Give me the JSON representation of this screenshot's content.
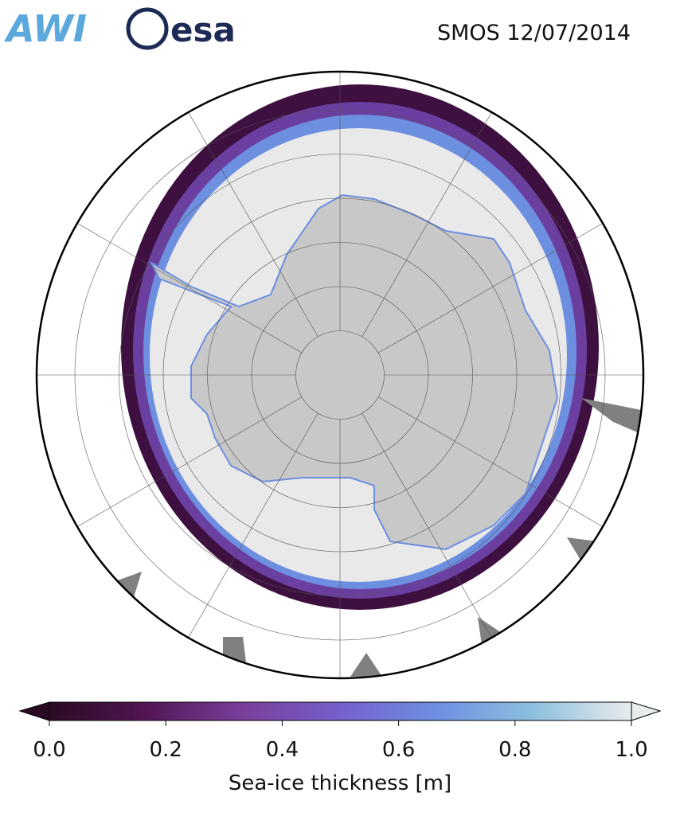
{
  "logos": [
    "AWI",
    "esa"
  ],
  "title": "SMOS 12/07/2014",
  "colorbar": {
    "label": "Sea-ice thickness [m]",
    "lim": [
      0,
      1
    ],
    "ticks": [
      {
        "value": 0,
        "label": "0.0"
      },
      {
        "value": 0.2,
        "label": "0.2"
      },
      {
        "value": 0.4,
        "label": "0.4"
      },
      {
        "value": 0.6,
        "label": "0.6"
      },
      {
        "value": 0.8,
        "label": "0.8"
      },
      {
        "value": 1,
        "label": "1.0"
      }
    ],
    "colors": [
      "#2a0a22",
      "#521655",
      "#7a3f9c",
      "#7660cc",
      "#6d8fe0",
      "#8ec0de",
      "#e8ecec"
    ]
  }
}
